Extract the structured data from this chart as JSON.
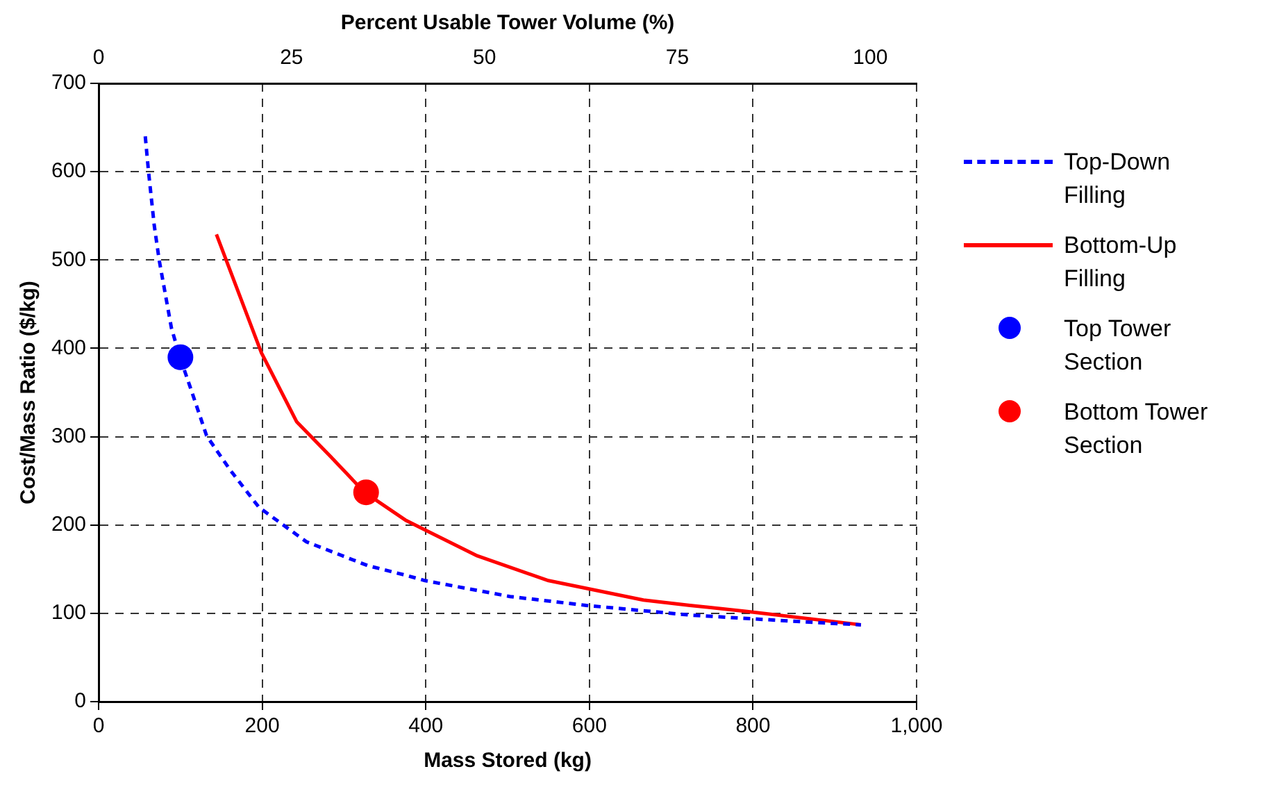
{
  "chart_data": {
    "type": "line",
    "xlabel": "Mass Stored (kg)",
    "ylabel": "Cost/Mass Ratio ($/kg)",
    "x2label": "Percent Usable Tower Volume (%)",
    "xlim": [
      0,
      1000
    ],
    "xticks": [
      0,
      200,
      400,
      600,
      800,
      {
        "value": 1000,
        "label": "1,000"
      }
    ],
    "ylim": [
      0,
      700
    ],
    "yticks": [
      0,
      100,
      200,
      300,
      400,
      500,
      600,
      700
    ],
    "x2lim": [
      0,
      106
    ],
    "x2ticks": [
      0,
      25,
      50,
      75,
      100
    ],
    "grid": true,
    "legend": "right",
    "series": [
      {
        "name": "Top-Down Filling",
        "type": "line",
        "color": "#0000ff",
        "line_style": "dashed",
        "marker": "none",
        "x": [
          57,
          61,
          68,
          74,
          89,
          99,
          112,
          132,
          161,
          196,
          254,
          329,
          376,
          399,
          503,
          596,
          723,
          868,
          932
        ],
        "values": [
          640,
          600,
          539,
          500,
          423,
          391,
          356,
          301,
          262,
          220,
          181,
          154,
          143,
          137,
          119,
          109,
          98,
          90,
          87
        ]
      },
      {
        "name": "Bottom-Up Filling",
        "type": "line",
        "color": "#ff0000",
        "line_style": "solid",
        "marker": "none",
        "x": [
          144,
          199,
          242,
          283,
          325,
          376,
          463,
          550,
          666,
          723,
          793,
          932
        ],
        "values": [
          529,
          395,
          317,
          278,
          237,
          205,
          165,
          137,
          115,
          109,
          102,
          87
        ]
      },
      {
        "name": "Top Tower Section",
        "type": "scatter",
        "color": "#0000ff",
        "marker": "circle",
        "x": [
          100
        ],
        "values": [
          390
        ]
      },
      {
        "name": "Bottom Tower Section",
        "type": "scatter",
        "color": "#ff0000",
        "marker": "circle",
        "x": [
          327
        ],
        "values": [
          237
        ]
      }
    ]
  }
}
